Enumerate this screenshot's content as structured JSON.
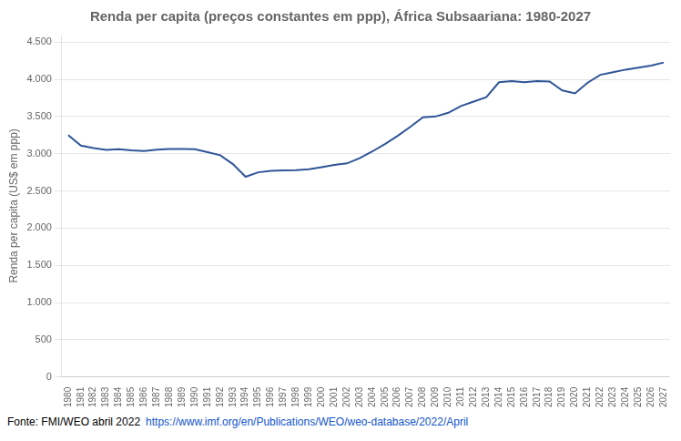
{
  "chart_data": {
    "type": "line",
    "title": "Renda per capita (preços constantes em ppp), África Subsaariana: 1980-2027",
    "ylabel": "Renda per capita (US$ em ppp)",
    "annotations": [
      {
        "text": "Fonte: FMI/WEO abril 2022",
        "color": "#000000"
      },
      {
        "text": "https://www.imf.org/en/Publications/WEO/weo-database/2022/April",
        "color": "#1155CC"
      }
    ],
    "categories": [
      "1980",
      "1981",
      "1982",
      "1983",
      "1984",
      "1985",
      "1986",
      "1987",
      "1988",
      "1989",
      "1990",
      "1991",
      "1992",
      "1993",
      "1994",
      "1995",
      "1996",
      "1997",
      "1998",
      "1999",
      "2000",
      "2001",
      "2002",
      "2003",
      "2004",
      "2005",
      "2006",
      "2007",
      "2008",
      "2009",
      "2010",
      "2011",
      "2012",
      "2013",
      "2014",
      "2015",
      "2016",
      "2017",
      "2018",
      "2019",
      "2020",
      "2021",
      "2022",
      "2023",
      "2024",
      "2025",
      "2026",
      "2027"
    ],
    "values": [
      3250,
      3110,
      3075,
      3050,
      3060,
      3045,
      3035,
      3055,
      3065,
      3065,
      3060,
      3020,
      2980,
      2860,
      2690,
      2750,
      2770,
      2775,
      2780,
      2790,
      2820,
      2850,
      2870,
      2940,
      3030,
      3130,
      3240,
      3360,
      3490,
      3500,
      3550,
      3640,
      3700,
      3760,
      3960,
      3975,
      3960,
      3975,
      3970,
      3850,
      3810,
      3955,
      4060,
      4095,
      4130,
      4155,
      4185,
      4225
    ],
    "color": "#2F5597",
    "ylim": [
      0,
      4600
    ],
    "yticks": [
      0,
      500,
      {
        "value": 1000,
        "label": "1.000"
      },
      {
        "value": 1500,
        "label": "1.500"
      },
      {
        "value": 2000,
        "label": "2.000"
      },
      {
        "value": 2500,
        "label": "2.500"
      },
      {
        "value": 3000,
        "label": "3.000"
      },
      {
        "value": 3500,
        "label": "3.500"
      },
      {
        "value": 4000,
        "label": "4.000"
      },
      {
        "value": 4500,
        "label": "4.500"
      }
    ],
    "grid": true
  }
}
